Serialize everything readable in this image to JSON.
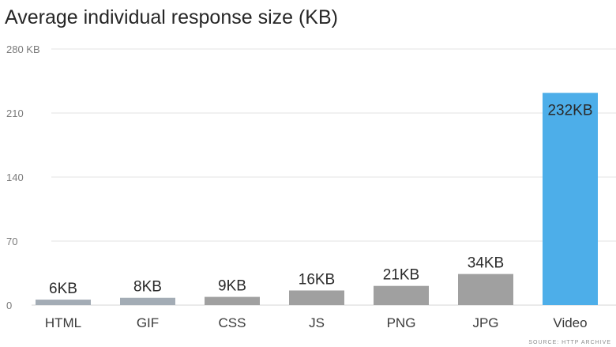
{
  "chart_data": {
    "type": "bar",
    "title": "Average individual response size (KB)",
    "categories": [
      "HTML",
      "GIF",
      "CSS",
      "JS",
      "PNG",
      "JPG",
      "Video"
    ],
    "values": [
      6,
      8,
      9,
      16,
      21,
      34,
      232
    ],
    "value_labels": [
      "6KB",
      "8KB",
      "9KB",
      "16KB",
      "21KB",
      "34KB",
      "232KB"
    ],
    "yticks": [
      0,
      70,
      140,
      210,
      280
    ],
    "ytick_labels": [
      "0",
      "70",
      "140",
      "210",
      "280 KB"
    ],
    "ylim": [
      0,
      280
    ],
    "xlabel": "",
    "ylabel": "",
    "grid": true,
    "bar_colors": [
      "#a3acb5",
      "#a3acb5",
      "#a0a0a0",
      "#a0a0a0",
      "#a0a0a0",
      "#a0a0a0",
      "#4daee9"
    ],
    "source": "SOURCE: HTTP ARCHIVE"
  }
}
